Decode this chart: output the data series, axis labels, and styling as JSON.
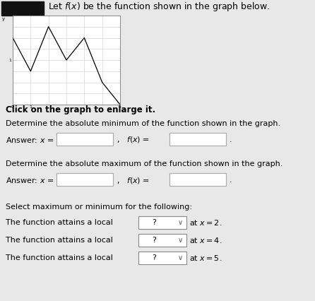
{
  "title_text": "Let $f(x)$ be the function shown in the graph below.",
  "click_text": "Click on the graph to enlarge it.",
  "abs_min_text": "Determine the absolute minimum of the function shown in the graph.",
  "abs_max_text": "Determine the absolute maximum of the function shown in the graph.",
  "answer_x_label": "Answer: $x$ =",
  "answer_fx_label": "$f(x)$ =",
  "select_text": "Select maximum or minimum for the following:",
  "local_lines": [
    {
      "text": "The function attains a local",
      "dropdown": "?",
      "suffix": "at $x = 2$."
    },
    {
      "text": "The function attains a local",
      "dropdown": "?",
      "suffix": "at $x = 4$."
    },
    {
      "text": "The function attains a local",
      "dropdown": "?",
      "suffix": "at $x = 5$."
    }
  ],
  "graph_x": [
    0,
    1,
    2,
    3,
    4,
    5,
    6
  ],
  "graph_y": [
    3,
    0,
    4,
    1,
    3,
    -1,
    -3
  ],
  "graph_xlim": [
    0,
    6
  ],
  "graph_ylim": [
    -3,
    5
  ],
  "background_color": "#e8e8e8",
  "graph_bg": "#ffffff",
  "box_color": "#ffffff",
  "box_edge": "#aaaaaa",
  "dropdown_bg": "#ffffff",
  "dropdown_edge": "#888888",
  "arrow_color": "#555555",
  "font_color": "#000000",
  "icon_color": "#111111"
}
